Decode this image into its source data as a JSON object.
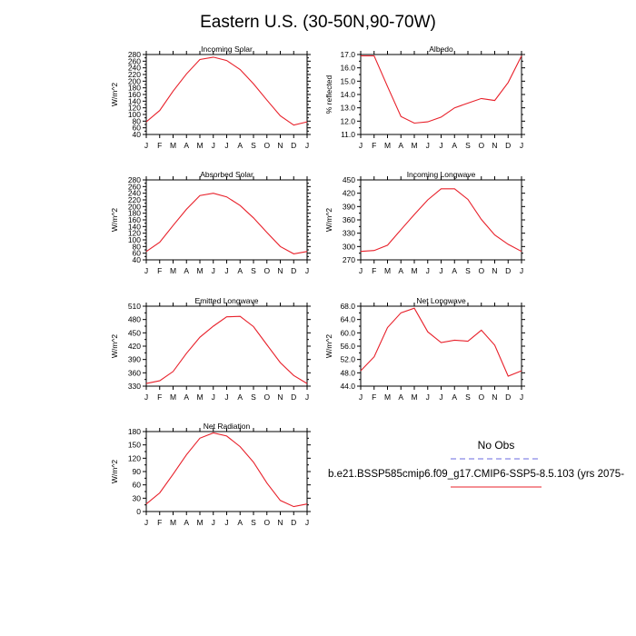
{
  "page_title": "Eastern U.S. (30-50N,90-70W)",
  "months": [
    "J",
    "F",
    "M",
    "A",
    "M",
    "J",
    "J",
    "A",
    "S",
    "O",
    "N",
    "D",
    "J"
  ],
  "line_color": "#e8202a",
  "obs_color": "#6a6ae0",
  "legend": {
    "obs_label": "No Obs",
    "model_label": "b.e21.BSSP585cmip6.f09_g17.CMIP6-SSP5-8.5.103 (yrs 2075-"
  },
  "chart_data": [
    {
      "type": "line",
      "title": "Incoming Solar",
      "ylabel": "W/m^2",
      "ylim": [
        40,
        280
      ],
      "yticks": [
        "40",
        "60",
        "80",
        "100",
        "120",
        "140",
        "160",
        "180",
        "200",
        "220",
        "240",
        "260",
        "280"
      ],
      "series": [
        {
          "values": [
            78,
            112,
            170,
            222,
            265,
            272,
            262,
            235,
            192,
            143,
            96,
            68,
            78
          ]
        }
      ]
    },
    {
      "type": "line",
      "title": "Albedo",
      "ylabel": "% reflected",
      "ylim": [
        11.0,
        17.0
      ],
      "yticks": [
        "11.0",
        "12.0",
        "13.0",
        "14.0",
        "15.0",
        "16.0",
        "17.0"
      ],
      "series": [
        {
          "values": [
            16.9,
            16.9,
            14.6,
            12.35,
            11.85,
            11.95,
            12.3,
            13.0,
            13.35,
            13.7,
            13.55,
            14.9,
            16.9
          ]
        }
      ]
    },
    {
      "type": "line",
      "title": "Absorbed Solar",
      "ylabel": "W/m^2",
      "ylim": [
        40,
        280
      ],
      "yticks": [
        "40",
        "60",
        "80",
        "100",
        "120",
        "140",
        "160",
        "180",
        "200",
        "220",
        "240",
        "260",
        "280"
      ],
      "series": [
        {
          "values": [
            65,
            93,
            143,
            192,
            233,
            240,
            229,
            203,
            166,
            122,
            80,
            58,
            65
          ]
        }
      ]
    },
    {
      "type": "line",
      "title": "Incoming Longwave",
      "ylabel": "W/m^2",
      "ylim": [
        270,
        450
      ],
      "yticks": [
        "270",
        "300",
        "330",
        "360",
        "390",
        "420",
        "450"
      ],
      "series": [
        {
          "values": [
            289,
            291,
            303,
            338,
            372,
            405,
            430,
            430,
            406,
            361,
            326,
            305,
            289
          ]
        }
      ]
    },
    {
      "type": "line",
      "title": "Emitted Longwave",
      "ylabel": "W/m^2",
      "ylim": [
        330,
        510
      ],
      "yticks": [
        "330",
        "360",
        "390",
        "420",
        "450",
        "480",
        "510"
      ],
      "series": [
        {
          "values": [
            336,
            342,
            363,
            404,
            440,
            465,
            486,
            487,
            464,
            423,
            383,
            354,
            336
          ]
        }
      ]
    },
    {
      "type": "line",
      "title": "Net Longwave",
      "ylabel": "W/m^2",
      "ylim": [
        44.0,
        68.0
      ],
      "yticks": [
        "44.0",
        "48.0",
        "52.0",
        "56.0",
        "60.0",
        "64.0",
        "68.0"
      ],
      "series": [
        {
          "values": [
            48.6,
            52.8,
            61.6,
            66.0,
            67.4,
            60.3,
            57.1,
            57.8,
            57.5,
            60.8,
            56.3,
            47.0,
            48.6
          ]
        }
      ]
    },
    {
      "type": "line",
      "title": "Net Radiation",
      "ylabel": "W/m^2",
      "ylim": [
        0,
        180
      ],
      "yticks": [
        "0",
        "30",
        "60",
        "90",
        "120",
        "150",
        "180"
      ],
      "series": [
        {
          "values": [
            17,
            42,
            84,
            128,
            165,
            177,
            170,
            146,
            111,
            64,
            25,
            11,
            17
          ]
        }
      ]
    }
  ]
}
